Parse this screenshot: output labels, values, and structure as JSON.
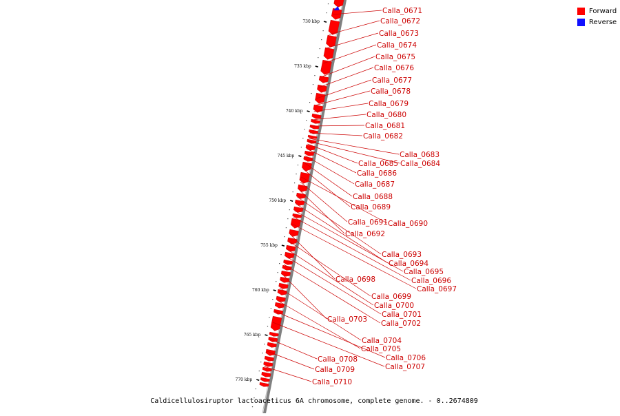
{
  "colors": {
    "forward": "#ff0000",
    "reverse": "#1010ff",
    "backbone": "#808080",
    "label": "#cc0000",
    "tick": "#000000"
  },
  "legend": {
    "items": [
      {
        "label": "Forward",
        "color": "#ff0000"
      },
      {
        "label": "Reverse",
        "color": "#1010ff"
      }
    ]
  },
  "caption": "Caldicellulosiruptor lactoaceticus 6A chromosome, complete genome. - 0..2674809",
  "ticks": [
    {
      "kbp": 730,
      "label": "730 kbp"
    },
    {
      "kbp": 735,
      "label": "735 kbp"
    },
    {
      "kbp": 740,
      "label": "740 kbp"
    },
    {
      "kbp": 745,
      "label": "745 kbp"
    },
    {
      "kbp": 750,
      "label": "750 kbp"
    },
    {
      "kbp": 755,
      "label": "755 kbp"
    },
    {
      "kbp": 760,
      "label": "760 kbp"
    },
    {
      "kbp": 765,
      "label": "765 kbp"
    },
    {
      "kbp": 770,
      "label": "770 kbp"
    }
  ],
  "genes": [
    {
      "id": "Calla_0671"
    },
    {
      "id": "Calla_0672"
    },
    {
      "id": "Calla_0673"
    },
    {
      "id": "Calla_0674"
    },
    {
      "id": "Calla_0675"
    },
    {
      "id": "Calla_0676"
    },
    {
      "id": "Calla_0677"
    },
    {
      "id": "Calla_0678"
    },
    {
      "id": "Calla_0679"
    },
    {
      "id": "Calla_0680"
    },
    {
      "id": "Calla_0681"
    },
    {
      "id": "Calla_0682"
    },
    {
      "id": "Calla_0683"
    },
    {
      "id": "Calla_0684"
    },
    {
      "id": "Calla_0685"
    },
    {
      "id": "Calla_0686"
    },
    {
      "id": "Calla_0687"
    },
    {
      "id": "Calla_0688"
    },
    {
      "id": "Calla_0689"
    },
    {
      "id": "Calla_0690"
    },
    {
      "id": "Calla_0691"
    },
    {
      "id": "Calla_0692"
    },
    {
      "id": "Calla_0693"
    },
    {
      "id": "Calla_0694"
    },
    {
      "id": "Calla_0695"
    },
    {
      "id": "Calla_0696"
    },
    {
      "id": "Calla_0697"
    },
    {
      "id": "Calla_0698"
    },
    {
      "id": "Calla_0699"
    },
    {
      "id": "Calla_0700"
    },
    {
      "id": "Calla_0701"
    },
    {
      "id": "Calla_0702"
    },
    {
      "id": "Calla_0703"
    },
    {
      "id": "Calla_0704"
    },
    {
      "id": "Calla_0705"
    },
    {
      "id": "Calla_0706"
    },
    {
      "id": "Calla_0707"
    },
    {
      "id": "Calla_0708"
    },
    {
      "id": "Calla_0709"
    },
    {
      "id": "Calla_0710"
    }
  ]
}
